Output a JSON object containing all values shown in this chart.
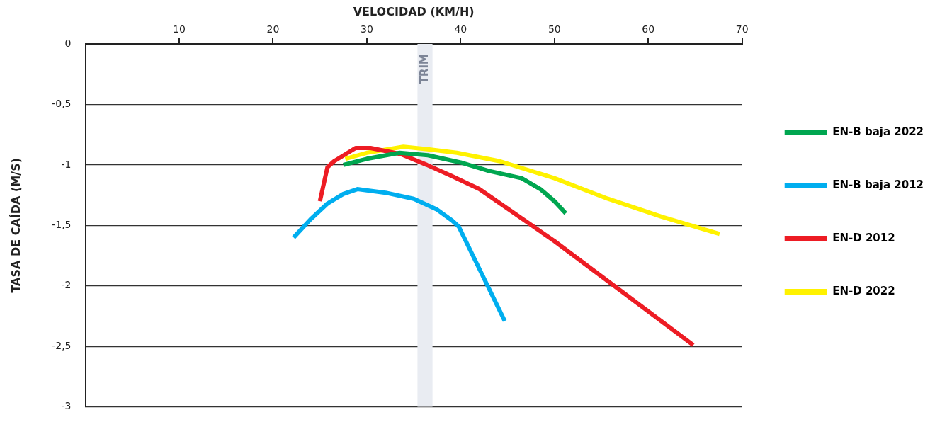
{
  "chart_data": {
    "type": "line",
    "xlabel": "VELOCIDAD (KM/H)",
    "ylabel": "TASA DE CAÍDA (M/S)",
    "xlim": [
      0,
      70
    ],
    "xticks": [
      10,
      20,
      30,
      40,
      50,
      60,
      70
    ],
    "ylim": [
      -3,
      0
    ],
    "yticks": [
      0,
      {
        "value": -0.5,
        "label": "-0,5"
      },
      -1,
      {
        "value": -1.5,
        "label": "-1,5"
      },
      -2,
      {
        "value": -2.5,
        "label": "-2,5"
      },
      -3
    ],
    "grid": "y",
    "legend": "right",
    "marker": "none",
    "line_style": "solid",
    "bands": [
      {
        "axis": "x",
        "from": 35.4,
        "to": 37,
        "label": "TRIM",
        "color": "#e9ecf2"
      }
    ],
    "series": [
      {
        "name": "EN-B baja 2022",
        "color": "#00a650",
        "x": [
          27.5,
          30,
          33.5,
          36.5,
          40,
          43,
          46.5,
          48.5,
          50,
          51.2
        ],
        "values": [
          -1.0,
          -0.95,
          -0.9,
          -0.92,
          -0.98,
          -1.05,
          -1.11,
          -1.2,
          -1.3,
          -1.4
        ]
      },
      {
        "name": "EN-B baja 2012",
        "color": "#00aeef",
        "x": [
          22.2,
          24,
          25.8,
          27.5,
          29,
          32,
          35,
          37.5,
          39.1,
          39.8,
          44.7
        ],
        "values": [
          -1.6,
          -1.45,
          -1.32,
          -1.24,
          -1.2,
          -1.23,
          -1.28,
          -1.37,
          -1.46,
          -1.51,
          -2.29
        ]
      },
      {
        "name": "EN-D 2012",
        "color": "#ed1c24",
        "x": [
          25,
          25.8,
          26.5,
          28.8,
          30.4,
          33.6,
          36.4,
          39,
          42,
          50,
          64.8
        ],
        "values": [
          -1.3,
          -1.02,
          -0.97,
          -0.86,
          -0.86,
          -0.91,
          -1.0,
          -1.09,
          -1.2,
          -1.63,
          -2.49
        ]
      },
      {
        "name": "EN-D 2022",
        "color": "#fff200",
        "x": [
          27.7,
          30,
          33.9,
          36.5,
          39.6,
          44.2,
          50,
          55.7,
          61.5,
          67.6
        ],
        "values": [
          -0.95,
          -0.9,
          -0.85,
          -0.87,
          -0.9,
          -0.97,
          -1.11,
          -1.28,
          -1.43,
          -1.57
        ]
      }
    ]
  }
}
